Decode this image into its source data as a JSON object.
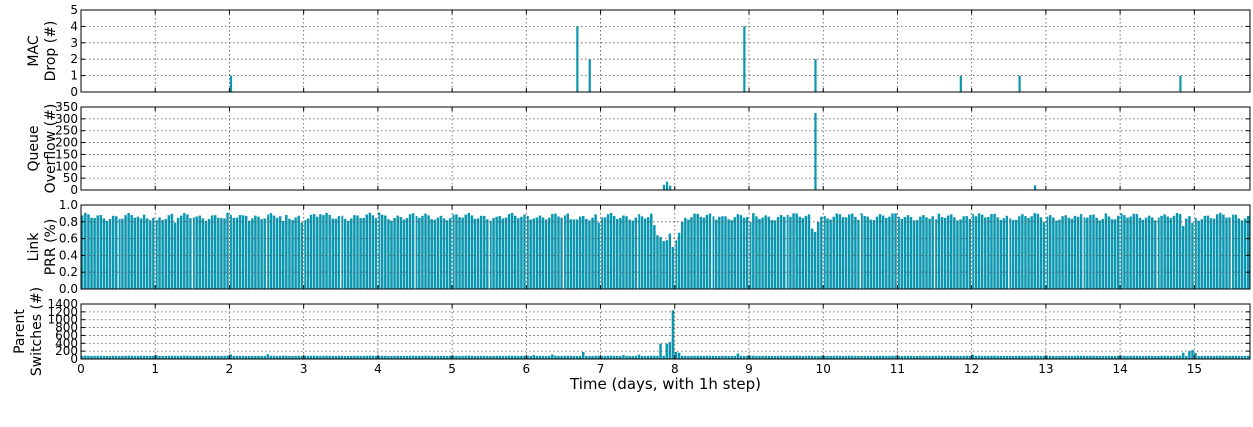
{
  "chart_data": {
    "type": "bar",
    "color": "#0b97b0",
    "xlabel": "Time (days, with 1h step)",
    "xlim": [
      0,
      15.75
    ],
    "xticks": [
      0,
      1,
      2,
      3,
      4,
      5,
      6,
      7,
      8,
      9,
      10,
      11,
      12,
      13,
      14,
      15
    ],
    "xtick_labels": [
      "0",
      "1",
      "2",
      "3",
      "4",
      "5",
      "6",
      "7",
      "8",
      "9",
      "10",
      "11",
      "12",
      "13",
      "14",
      "15"
    ],
    "grid": true,
    "panels": [
      {
        "name": "mac-drop",
        "ylabel": [
          "MAC",
          "Drop (#)"
        ],
        "ylim": [
          0,
          5
        ],
        "yticks": [
          0,
          1,
          2,
          3,
          4,
          5
        ],
        "ytick_labels": [
          "0",
          "1",
          "2",
          "3",
          "4",
          "5"
        ],
        "baseline": 0,
        "points": [
          [
            1.98,
            1
          ],
          [
            6.68,
            4
          ],
          [
            6.85,
            2
          ],
          [
            8.9,
            4
          ],
          [
            9.86,
            2
          ],
          [
            11.82,
            1
          ],
          [
            12.64,
            1
          ],
          [
            14.8,
            1
          ]
        ]
      },
      {
        "name": "queue-overflow",
        "ylabel": [
          "Queue",
          "Overflow (#)"
        ],
        "ylim": [
          0,
          350
        ],
        "yticks": [
          0,
          50,
          100,
          150,
          200,
          250,
          300,
          350
        ],
        "ytick_labels": [
          "0",
          "50",
          "100",
          "150",
          "200",
          "250",
          "300",
          "350"
        ],
        "baseline": 0,
        "points": [
          [
            7.84,
            22
          ],
          [
            7.88,
            35
          ],
          [
            7.92,
            18
          ],
          [
            9.86,
            325
          ],
          [
            12.82,
            20
          ],
          [
            14.96,
            5
          ]
        ]
      },
      {
        "name": "link-prr",
        "ylabel": [
          "Link",
          "PRR (%)"
        ],
        "ylim": [
          0,
          1.0
        ],
        "yticks": [
          0,
          0.2,
          0.4,
          0.6,
          0.8,
          1.0
        ],
        "ytick_labels": [
          "0.0",
          "0.2",
          "0.4",
          "0.6",
          "0.8",
          "1.0"
        ],
        "baseline": 0.86,
        "points": [
          [
            0.8,
            0.84
          ],
          [
            1.0,
            0.82
          ],
          [
            1.25,
            0.79
          ],
          [
            1.5,
            0.85
          ],
          [
            1.9,
            0.84
          ],
          [
            2.2,
            0.87
          ],
          [
            2.7,
            0.81
          ],
          [
            2.95,
            0.79
          ],
          [
            3.2,
            0.89
          ],
          [
            4.0,
            0.91
          ],
          [
            4.8,
            0.85
          ],
          [
            5.6,
            0.86
          ],
          [
            6.1,
            0.84
          ],
          [
            6.6,
            0.83
          ],
          [
            6.95,
            0.79
          ],
          [
            7.5,
            0.89
          ],
          [
            7.72,
            0.76
          ],
          [
            7.76,
            0.64
          ],
          [
            7.8,
            0.62
          ],
          [
            7.84,
            0.57
          ],
          [
            7.88,
            0.58
          ],
          [
            7.92,
            0.66
          ],
          [
            7.96,
            0.5
          ],
          [
            8.0,
            0.58
          ],
          [
            8.04,
            0.67
          ],
          [
            8.1,
            0.8
          ],
          [
            8.6,
            0.86
          ],
          [
            9.0,
            0.8
          ],
          [
            9.5,
            0.88
          ],
          [
            9.82,
            0.72
          ],
          [
            9.86,
            0.68
          ],
          [
            9.9,
            0.8
          ],
          [
            10.5,
            0.9
          ],
          [
            11.0,
            0.86
          ],
          [
            11.5,
            0.83
          ],
          [
            12.0,
            0.89
          ],
          [
            12.5,
            0.84
          ],
          [
            12.95,
            0.8
          ],
          [
            13.4,
            0.86
          ],
          [
            13.8,
            0.9
          ],
          [
            14.5,
            0.85
          ],
          [
            14.85,
            0.75
          ],
          [
            14.95,
            0.79
          ],
          [
            15.3,
            0.89
          ],
          [
            15.6,
            0.84
          ]
        ]
      },
      {
        "name": "parent-switches",
        "ylabel": [
          "Parent",
          "Switches (#)"
        ],
        "ylim": [
          0,
          1400
        ],
        "yticks": [
          0,
          200,
          400,
          600,
          800,
          1000,
          1200,
          1400
        ],
        "ytick_labels": [
          "0",
          "200",
          "400",
          "600",
          "800",
          "1000",
          "1200",
          "1400"
        ],
        "baseline": 80,
        "points": [
          [
            1.0,
            95
          ],
          [
            2.0,
            115
          ],
          [
            2.5,
            120
          ],
          [
            3.0,
            85
          ],
          [
            6.1,
            100
          ],
          [
            6.35,
            115
          ],
          [
            6.75,
            180
          ],
          [
            7.3,
            100
          ],
          [
            7.5,
            110
          ],
          [
            7.8,
            390
          ],
          [
            7.88,
            390
          ],
          [
            7.92,
            430
          ],
          [
            7.96,
            1240
          ],
          [
            8.0,
            180
          ],
          [
            8.04,
            160
          ],
          [
            8.84,
            140
          ],
          [
            12.0,
            110
          ],
          [
            14.85,
            160
          ],
          [
            14.92,
            200
          ],
          [
            14.95,
            230
          ],
          [
            15.0,
            150
          ]
        ]
      }
    ]
  }
}
